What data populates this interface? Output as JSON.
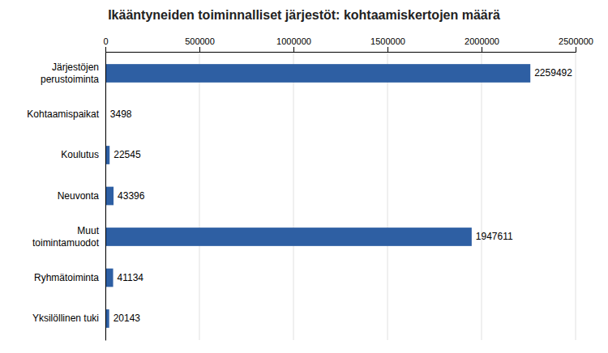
{
  "chart_data": {
    "type": "bar",
    "orientation": "horizontal",
    "title": "Ikääntyneiden toiminnalliset järjestöt: kohtaamiskertojen määrä",
    "categories": [
      "Järjestöjen\nperustoiminta",
      "Kohtaamispaikat",
      "Koulutus",
      "Neuvonta",
      "Muut\ntoimintamuodot",
      "Ryhmätoiminta",
      "Yksilöllinen tuki"
    ],
    "values": [
      2259492,
      3498,
      22545,
      43396,
      1947611,
      41134,
      20143
    ],
    "color": "#2E5FA3",
    "xlim": [
      0,
      2500000
    ],
    "xticks": [
      0,
      500000,
      1000000,
      1500000,
      2000000,
      2500000
    ],
    "grid": true,
    "data_labels": true
  }
}
